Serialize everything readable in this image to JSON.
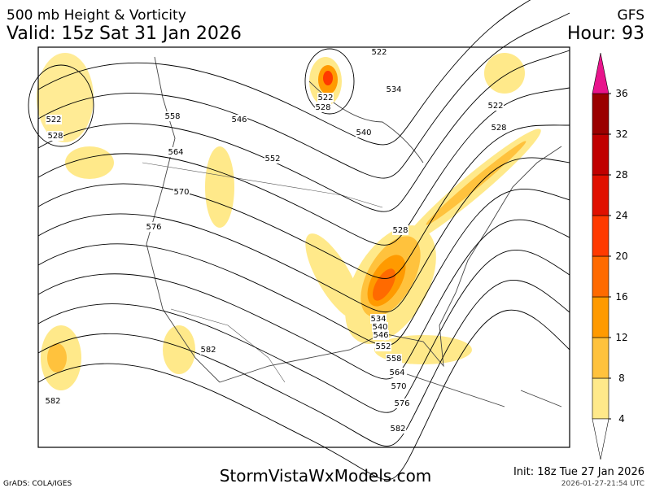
{
  "header": {
    "title": "500 mb Height & Vorticity",
    "model": "GFS",
    "valid": "Valid: 15z Sat 31 Jan 2026",
    "hour": "Hour: 93"
  },
  "colorbar": {
    "ticks": [
      4,
      8,
      12,
      16,
      20,
      24,
      28,
      32,
      36
    ],
    "colors": [
      "#ffe98a",
      "#ffc23d",
      "#ff9a00",
      "#ff6a00",
      "#ff3a00",
      "#e01000",
      "#c00000",
      "#9a0000"
    ],
    "over_color": "#e8148c"
  },
  "contour_labels": [
    "522",
    "528",
    "522",
    "528",
    "534",
    "540",
    "546",
    "552",
    "558",
    "564",
    "570",
    "576",
    "582",
    "582",
    "528",
    "534",
    "540",
    "546",
    "552",
    "558",
    "564",
    "570",
    "576",
    "582",
    "522",
    "528",
    "522"
  ],
  "footer": {
    "site": "StormVistaWxModels.com",
    "init": "Init: 18z Tue 27 Jan 2026",
    "grads": "GrADS: COLA/IGES",
    "timestamp": "2026-01-27-21:54 UTC"
  }
}
